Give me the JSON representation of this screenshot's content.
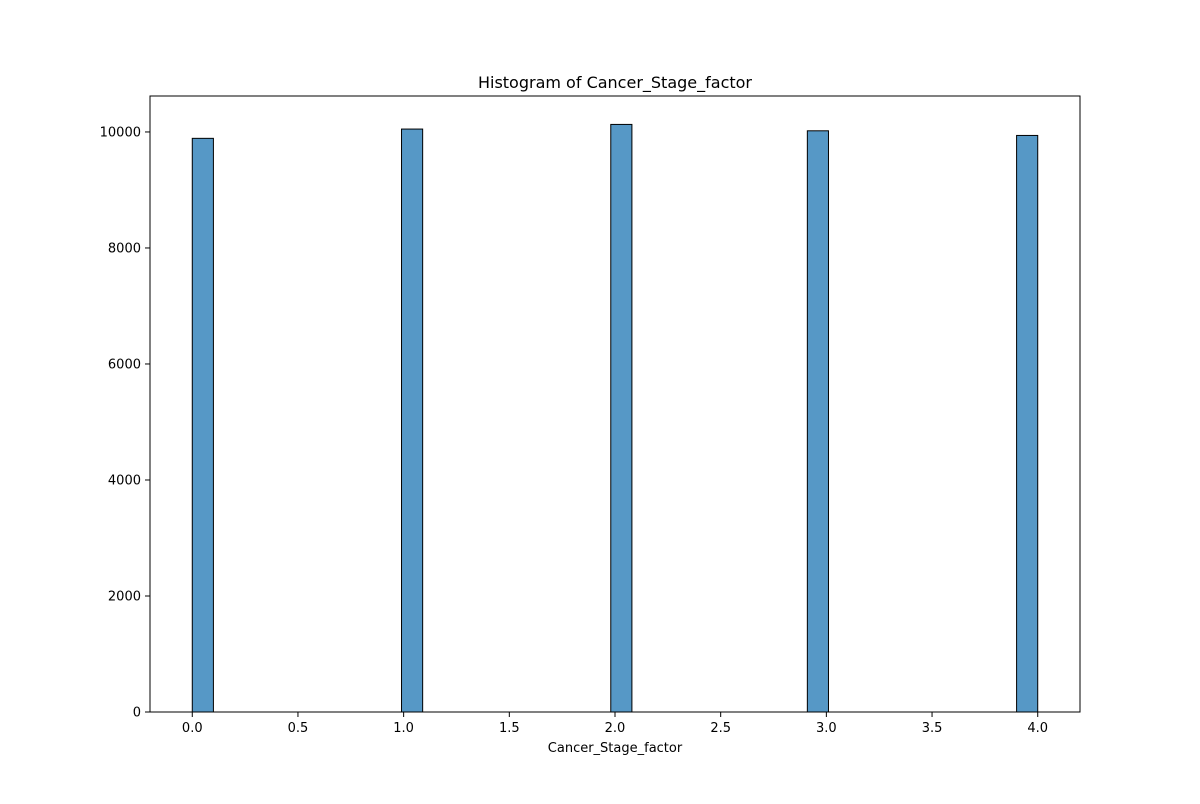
{
  "chart_data": {
    "type": "bar",
    "title": "Histogram of Cancer_Stage_factor",
    "xlabel": "Cancer_Stage_factor",
    "ylabel": "",
    "bin_width": 0.1,
    "bins": [
      {
        "x0": 0.0,
        "x1": 0.1,
        "count": 9890
      },
      {
        "x0": 0.99,
        "x1": 1.09,
        "count": 10050
      },
      {
        "x0": 1.98,
        "x1": 2.08,
        "count": 10130
      },
      {
        "x0": 2.91,
        "x1": 3.01,
        "count": 10020
      },
      {
        "x0": 3.9,
        "x1": 4.0,
        "count": 9940
      }
    ],
    "xlim": [
      -0.2,
      4.2
    ],
    "ylim": [
      0,
      10620
    ],
    "xticks": [
      0.0,
      0.5,
      1.0,
      1.5,
      2.0,
      2.5,
      3.0,
      3.5,
      4.0
    ],
    "xtick_labels": [
      "0.0",
      "0.5",
      "1.0",
      "1.5",
      "2.0",
      "2.5",
      "3.0",
      "3.5",
      "4.0"
    ],
    "yticks": [
      0,
      2000,
      4000,
      6000,
      8000,
      10000
    ],
    "ytick_labels": [
      "0",
      "2000",
      "4000",
      "6000",
      "8000",
      "10000"
    ],
    "grid": false,
    "bar_color": "#5698c6",
    "edge_color": "#000000"
  }
}
